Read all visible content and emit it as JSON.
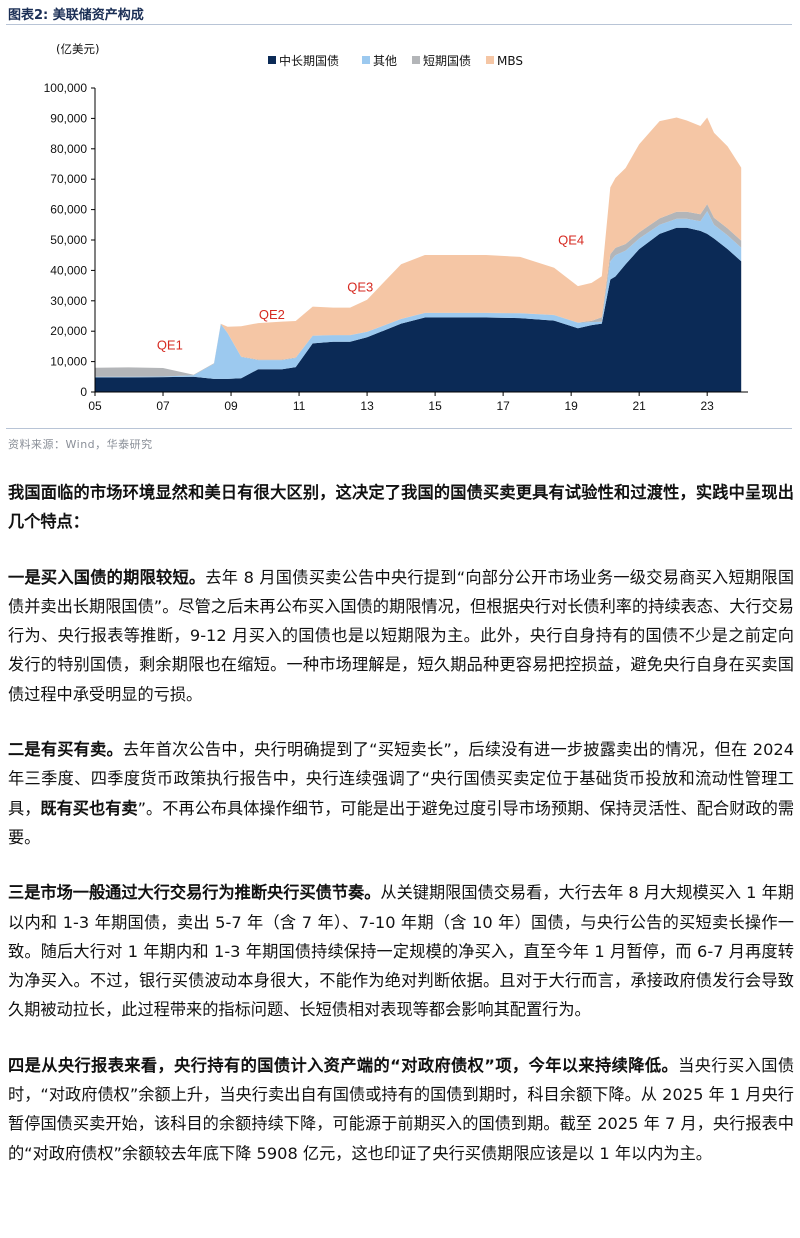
{
  "figure": {
    "title": "图表2:  美联储资产构成",
    "source": "资料来源：Wind，华泰研究"
  },
  "chart_data": {
    "type": "area",
    "stacked": true,
    "unit_label": "(亿美元)",
    "x": [
      2005.0,
      2006.0,
      2007.0,
      2007.9,
      2008.5,
      2008.7,
      2008.9,
      2009.3,
      2009.8,
      2010.5,
      2010.9,
      2011.4,
      2012.0,
      2012.5,
      2013.0,
      2014.0,
      2014.7,
      2015.5,
      2016.5,
      2017.5,
      2018.5,
      2019.2,
      2019.6,
      2019.9,
      2020.15,
      2020.3,
      2020.6,
      2021.0,
      2021.6,
      2022.1,
      2022.4,
      2022.8,
      2023.0,
      2023.2,
      2023.6,
      2024.0
    ],
    "series": [
      {
        "name": "中长期国债",
        "color": "#0b2a56",
        "values": [
          4800,
          4800,
          4900,
          5000,
          4300,
          4300,
          4300,
          4500,
          7500,
          7500,
          8200,
          16000,
          16500,
          16500,
          18000,
          22500,
          24500,
          24500,
          24500,
          24300,
          23500,
          21000,
          22000,
          22500,
          37000,
          38000,
          42000,
          47000,
          52000,
          54000,
          54000,
          53000,
          52000,
          50500,
          47000,
          43000
        ]
      },
      {
        "name": "其他",
        "color": "#9cc9ef",
        "values": [
          200,
          200,
          200,
          500,
          5000,
          18000,
          15000,
          7000,
          3000,
          3000,
          3000,
          2500,
          2200,
          2200,
          1800,
          1500,
          1500,
          1500,
          1500,
          1600,
          1800,
          1800,
          1000,
          600,
          6000,
          7000,
          4500,
          3500,
          3000,
          3000,
          3000,
          3200,
          7500,
          4500,
          4500,
          4500
        ]
      },
      {
        "name": "短期国债",
        "color": "#b3b5b8",
        "values": [
          3000,
          3100,
          2800,
          200,
          150,
          150,
          150,
          150,
          150,
          150,
          150,
          100,
          50,
          50,
          50,
          50,
          50,
          50,
          50,
          50,
          50,
          50,
          400,
          1500,
          2300,
          2400,
          2200,
          2000,
          2100,
          2300,
          2300,
          2300,
          2300,
          2300,
          2300,
          2300
        ]
      },
      {
        "name": "MBS",
        "color": "#f5c6a5",
        "values": [
          0,
          0,
          0,
          0,
          0,
          0,
          2000,
          10000,
          12000,
          12500,
          12000,
          9500,
          9000,
          9000,
          10500,
          18000,
          19000,
          19000,
          19000,
          18500,
          15500,
          12000,
          12500,
          13500,
          22000,
          23000,
          25000,
          29000,
          32000,
          31000,
          30000,
          29000,
          28500,
          28000,
          27000,
          24000
        ]
      }
    ],
    "xlim": [
      2005,
      2024.2
    ],
    "ylim": [
      0,
      100000
    ],
    "x_ticks": [
      2005,
      2007,
      2009,
      2011,
      2013,
      2015,
      2017,
      2019,
      2021,
      2023
    ],
    "x_tick_labels": [
      "05",
      "07",
      "09",
      "11",
      "13",
      "15",
      "17",
      "19",
      "21",
      "23"
    ],
    "y_ticks": [
      0,
      10000,
      20000,
      30000,
      40000,
      50000,
      60000,
      70000,
      80000,
      90000,
      100000
    ],
    "y_tick_labels": [
      "0",
      "10,000",
      "20,000",
      "30,000",
      "40,000",
      "50,000",
      "60,000",
      "70,000",
      "80,000",
      "90,000",
      "100,000"
    ],
    "annotations": [
      {
        "text": "QE1",
        "x": 2007.2,
        "y": 14000
      },
      {
        "text": "QE2",
        "x": 2010.2,
        "y": 24000
      },
      {
        "text": "QE3",
        "x": 2012.8,
        "y": 33000
      },
      {
        "text": "QE4",
        "x": 2019.0,
        "y": 48500
      }
    ],
    "legend_position": "top"
  },
  "paragraphs": [
    [
      {
        "t": "我国面临的市场环境显然和美日有很大区别，这决定了我国的国债买卖更具有试验性和过渡性，实践中呈现出几个特点：",
        "b": true
      }
    ],
    [
      {
        "t": "一是买入国债的期限较短。",
        "b": true
      },
      {
        "t": "去年 8 月国债买卖公告中央行提到“向部分公开市场业务一级交易商买入短期限国债并卖出长期限国债”。尽管之后未再公布买入国债的期限情况，但根据央行对长债利率的持续表态、大行交易行为、央行报表等推断，9-12 月买入的国债也是以短期限为主。此外，央行自身持有的国债不少是之前定向发行的特别国债，剩余期限也在缩短。一种市场理解是，短久期品种更容易把控损益，避免央行自身在买卖国债过程中承受明显的亏损。",
        "b": false
      }
    ],
    [
      {
        "t": "二是有买有卖。",
        "b": true
      },
      {
        "t": "去年首次公告中，央行明确提到了“买短卖长”，后续没有进一步披露卖出的情况，但在 2024 年三季度、四季度货币政策执行报告中，央行连续强调了“央行国债买卖定位于基础货币投放和流动性管理工具，",
        "b": false
      },
      {
        "t": "既有买也有卖",
        "b": true
      },
      {
        "t": "”。不再公布具体操作细节，可能是出于避免过度引导市场预期、保持灵活性、配合财政的需要。",
        "b": false
      }
    ],
    [
      {
        "t": "三是市场一般通过大行交易行为推断央行买债节奏。",
        "b": true
      },
      {
        "t": "从关键期限国债交易看，大行去年 8 月大规模买入 1 年期以内和 1-3 年期国债，卖出 5-7 年（含 7 年）、7-10 年期（含 10 年）国债，与央行公告的买短卖长操作一致。随后大行对 1 年期内和 1-3 年期国债持续保持一定规模的净买入，直至今年 1 月暂停，而 6-7 月再度转为净买入。不过，银行买债波动本身很大，不能作为绝对判断依据。且对于大行而言，承接政府债发行会导致久期被动拉长，此过程带来的指标问题、长短债相对表现等都会影响其配置行为。",
        "b": false
      }
    ],
    [
      {
        "t": "四是从央行报表来看，央行持有的国债计入资产端的“对政府债权”项，今年以来持续降低。",
        "b": true
      },
      {
        "t": "当央行买入国债时，“对政府债权”余额上升，当央行卖出自有国债或持有的国债到期时，科目余额下降。从 2025 年 1 月央行暂停国债买卖开始，该科目的余额持续下降，可能源于前期买入的国债到期。截至 2025 年 7 月，央行报表中的“对政府债权”余额较去年底下降 5908 亿元，这也印证了央行买债期限应该是以 1 年以内为主。",
        "b": false
      }
    ]
  ]
}
